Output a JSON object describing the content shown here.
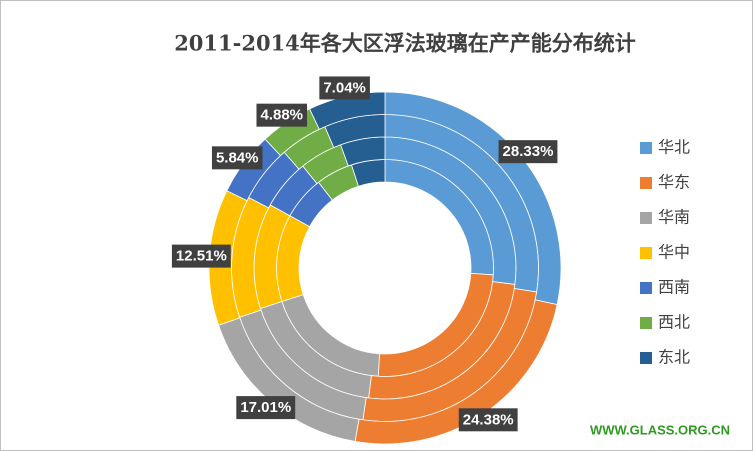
{
  "chart_data": {
    "type": "doughnut",
    "title": "2011-2014年各大区浮法玻璃在产产能分布统计",
    "categories": [
      "华北",
      "华东",
      "华南",
      "华中",
      "西南",
      "西北",
      "东北"
    ],
    "colors": [
      "#5b9bd5",
      "#ed7d31",
      "#a5a5a5",
      "#ffc000",
      "#4472c4",
      "#70ad47",
      "#255e91"
    ],
    "series": [
      {
        "values": [
          26,
          25,
          19,
          13,
          6.5,
          5.5,
          5
        ]
      },
      {
        "values": [
          27,
          25,
          18,
          13,
          6.2,
          5.3,
          5.5
        ]
      },
      {
        "values": [
          27.5,
          24.8,
          17.5,
          12.8,
          6,
          5,
          6.4
        ]
      },
      {
        "values": [
          28.33,
          24.38,
          17.01,
          12.51,
          5.84,
          4.88,
          7.04
        ],
        "value_labels": [
          "28.33%",
          "24.38%",
          "17.01%",
          "12.51%",
          "5.84%",
          "4.88%",
          "7.04%"
        ]
      }
    ],
    "legend": "right"
  },
  "watermark": "WWW.GLASS.ORG.CN"
}
